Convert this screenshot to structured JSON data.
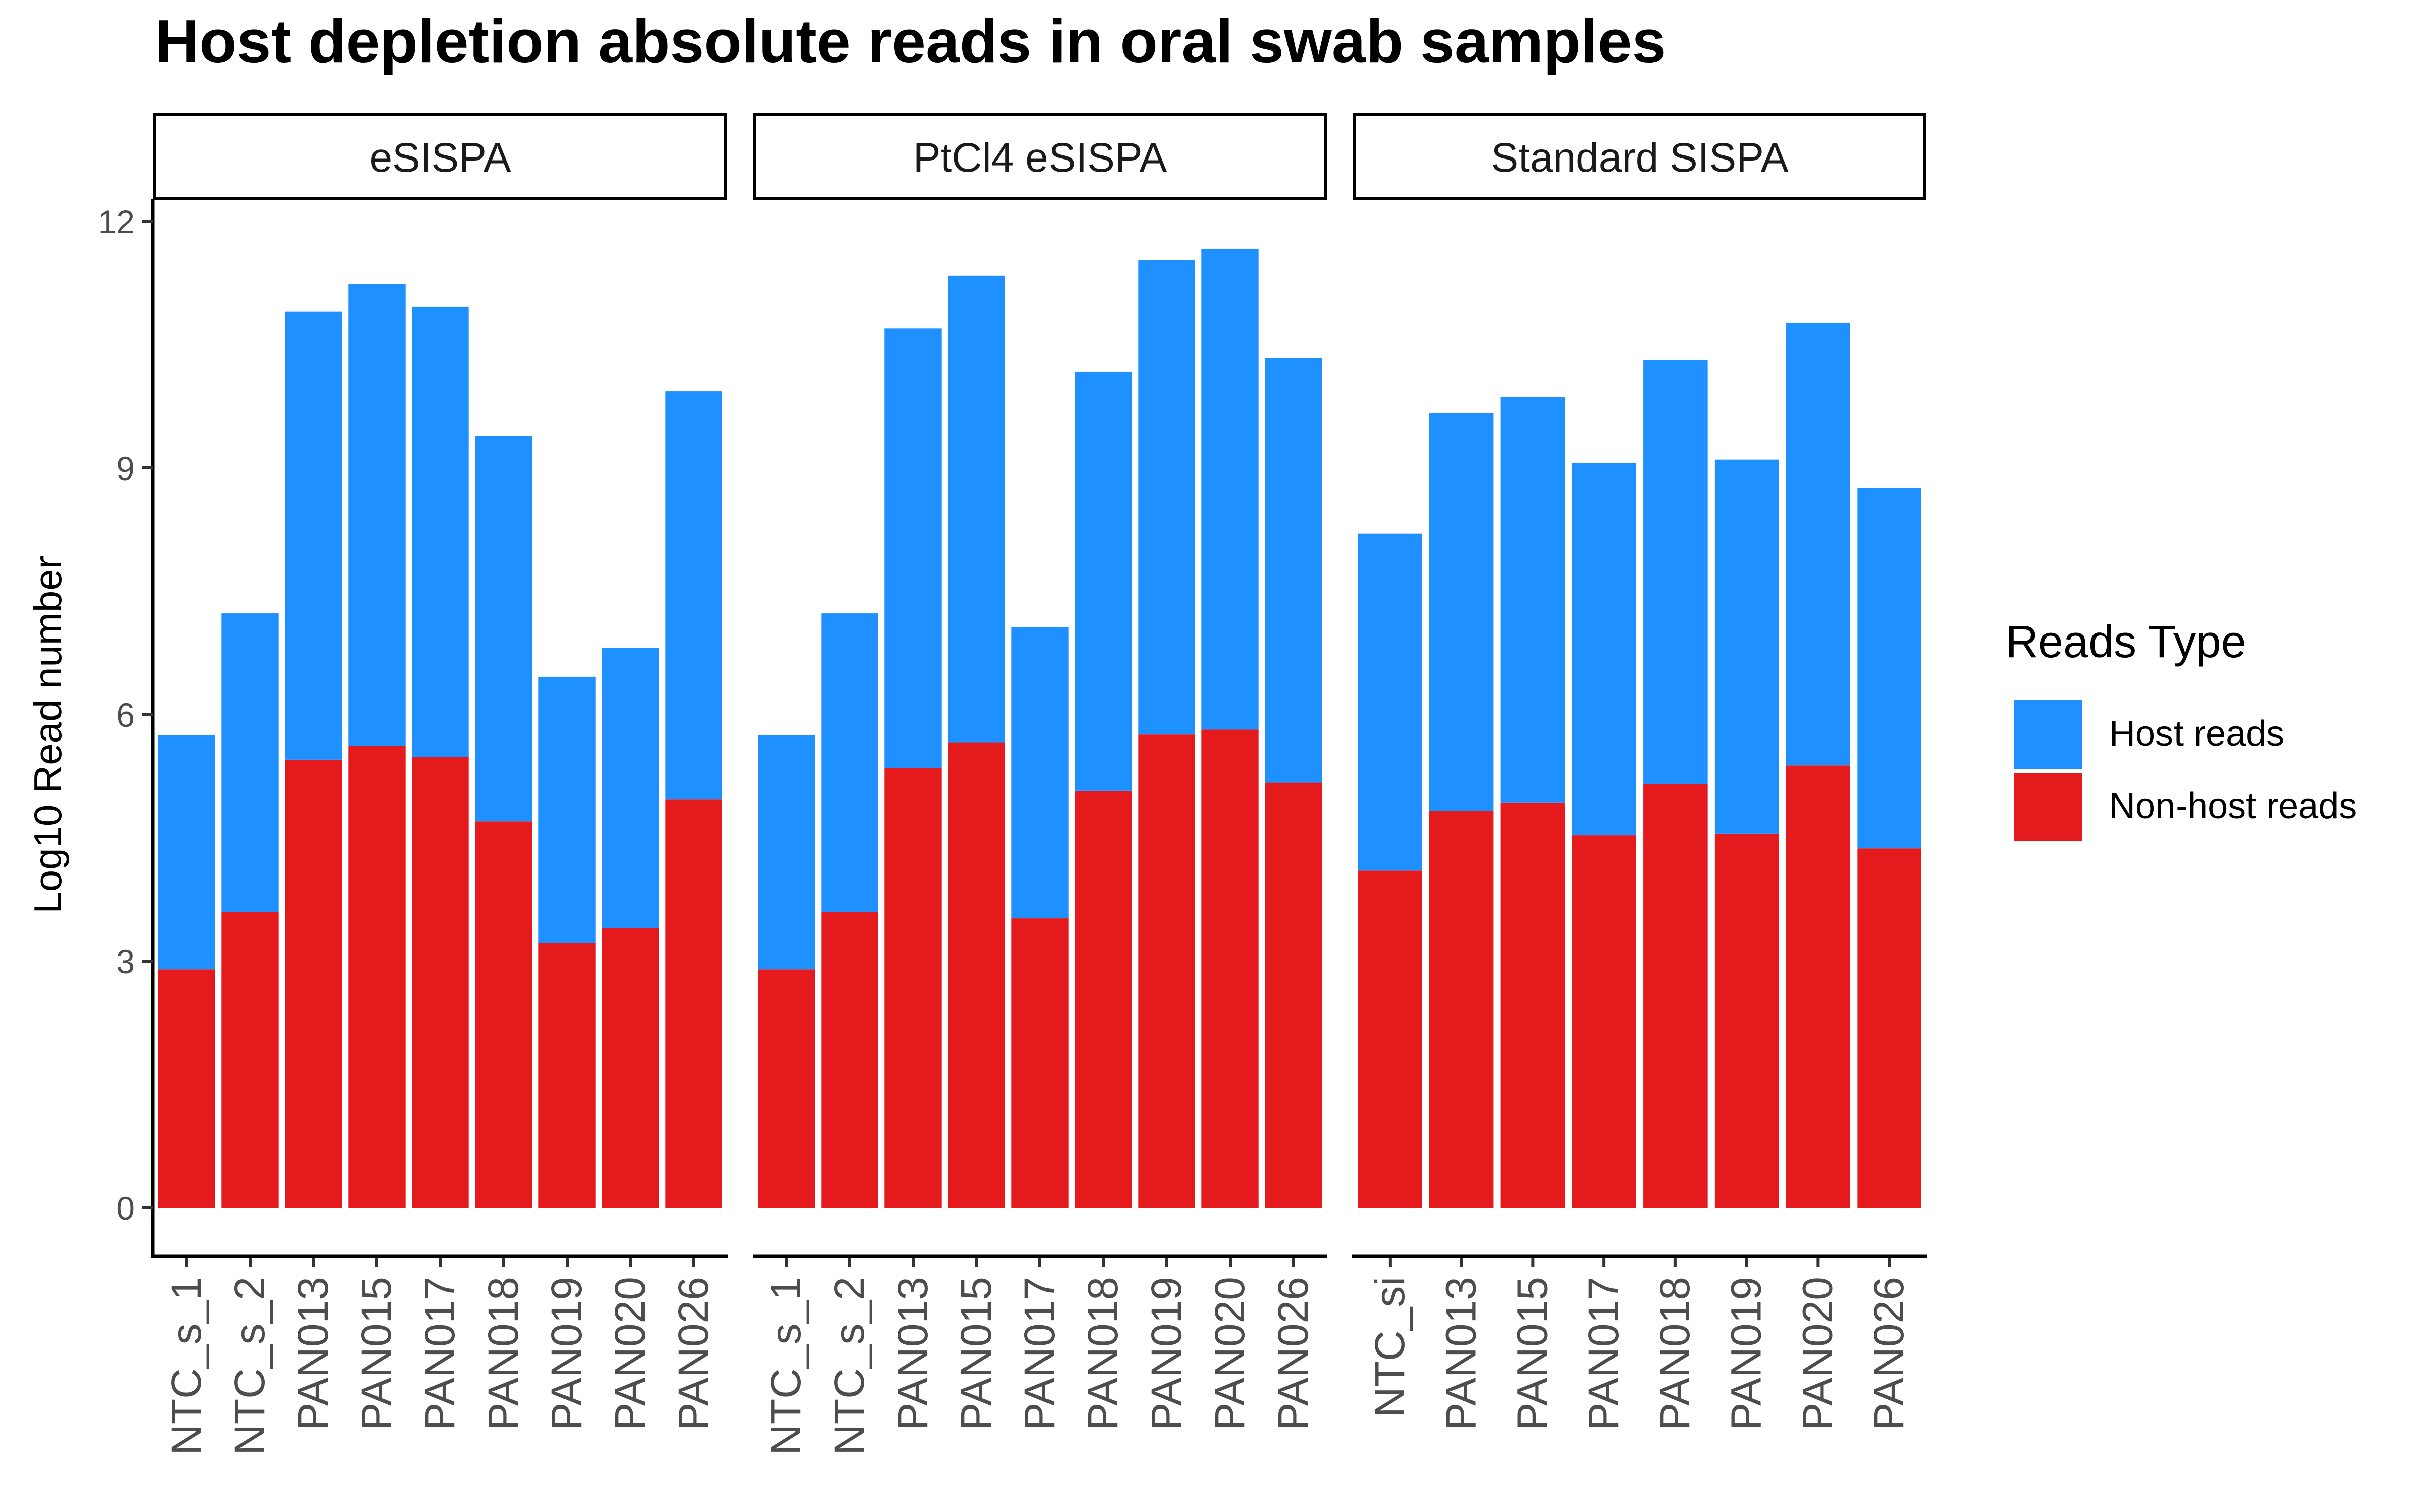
{
  "chart_data": {
    "type": "bar",
    "stacked": true,
    "title": "Host depletion absolute reads in oral swab samples",
    "ylabel": "Log10 Read number",
    "xlabel": "",
    "ylim": [
      0,
      12.5
    ],
    "yticks": [
      0,
      3,
      6,
      9,
      12
    ],
    "legend": {
      "title": "Reads Type",
      "placement": "right",
      "entries": [
        {
          "name": "Host reads",
          "color": "#1E90FF"
        },
        {
          "name": "Non-host reads",
          "color": "#E41A1C"
        }
      ]
    },
    "facets": [
      {
        "label": "eSISPA",
        "categories": [
          "NTC_s_1",
          "NTC_s_2",
          "PAN013",
          "PAN015",
          "PAN017",
          "PAN018",
          "PAN019",
          "PAN020",
          "PAN026"
        ],
        "series": [
          {
            "name": "Non-host reads",
            "values": [
              2.9,
              3.6,
              5.45,
              5.62,
              5.48,
              4.7,
              3.22,
              3.4,
              4.97
            ]
          },
          {
            "name": "Host reads",
            "values": [
              2.85,
              3.63,
              5.45,
              5.62,
              5.48,
              4.69,
              3.24,
              3.41,
              4.96
            ]
          }
        ],
        "totals": [
          5.75,
          7.23,
          10.9,
          11.24,
          10.96,
          9.39,
          6.46,
          6.81,
          9.93
        ]
      },
      {
        "label": "PtCl4 eSISPA",
        "categories": [
          "NTC_s_1",
          "NTC_s_2",
          "PAN013",
          "PAN015",
          "PAN017",
          "PAN018",
          "PAN019",
          "PAN020",
          "PAN026"
        ],
        "series": [
          {
            "name": "Non-host reads",
            "values": [
              2.9,
              3.6,
              5.35,
              5.66,
              3.52,
              5.07,
              5.76,
              5.82,
              5.17
            ]
          },
          {
            "name": "Host reads",
            "values": [
              2.85,
              3.63,
              5.35,
              5.68,
              3.54,
              5.1,
              5.77,
              5.85,
              5.17
            ]
          }
        ],
        "totals": [
          5.75,
          7.23,
          10.7,
          11.34,
          7.06,
          10.17,
          11.53,
          11.67,
          10.34
        ]
      },
      {
        "label": "Standard SISPA",
        "categories": [
          "NTC_si",
          "PAN013",
          "PAN015",
          "PAN017",
          "PAN018",
          "PAN019",
          "PAN020",
          "PAN026"
        ],
        "series": [
          {
            "name": "Non-host reads",
            "values": [
              4.1,
              4.83,
              4.93,
              4.53,
              5.15,
              4.55,
              5.38,
              4.37
            ]
          },
          {
            "name": "Host reads",
            "values": [
              4.1,
              4.84,
              4.93,
              4.53,
              5.16,
              4.55,
              5.39,
              4.39
            ]
          }
        ],
        "totals": [
          8.2,
          9.67,
          9.86,
          9.06,
          10.31,
          9.1,
          10.77,
          8.76
        ]
      }
    ]
  }
}
